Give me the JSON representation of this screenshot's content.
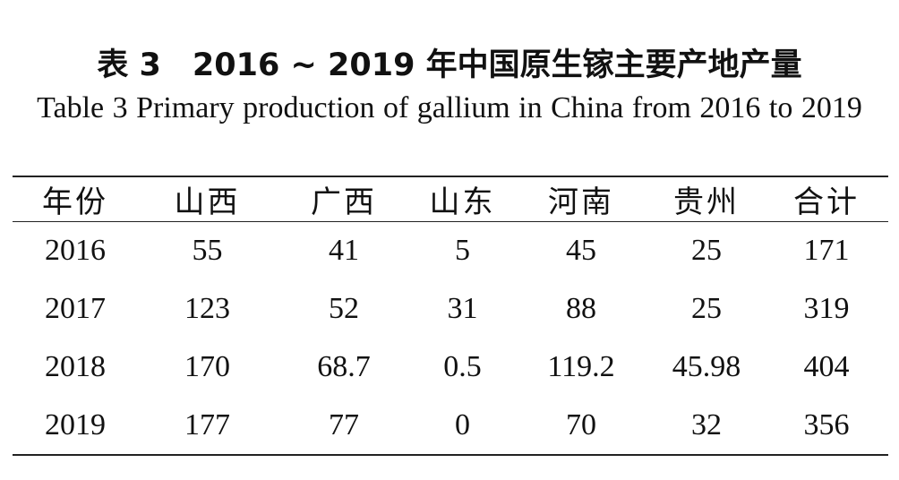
{
  "header": {
    "title": "表 3　2016 ~ 2019 年中国原生镓主要产地产量",
    "subtitle": "Table 3  Primary production of gallium in China from 2016 to 2019"
  },
  "table": {
    "columns": [
      "年份",
      "山西",
      "广西",
      "山东",
      "河南",
      "贵州",
      "合计"
    ],
    "rows": [
      [
        "2016",
        "55",
        "41",
        "5",
        "45",
        "25",
        "171"
      ],
      [
        "2017",
        "123",
        "52",
        "31",
        "88",
        "25",
        "319"
      ],
      [
        "2018",
        "170",
        "68.7",
        "0.5",
        "119.2",
        "45.98",
        "404"
      ],
      [
        "2019",
        "177",
        "77",
        "0",
        "70",
        "32",
        "356"
      ]
    ]
  }
}
